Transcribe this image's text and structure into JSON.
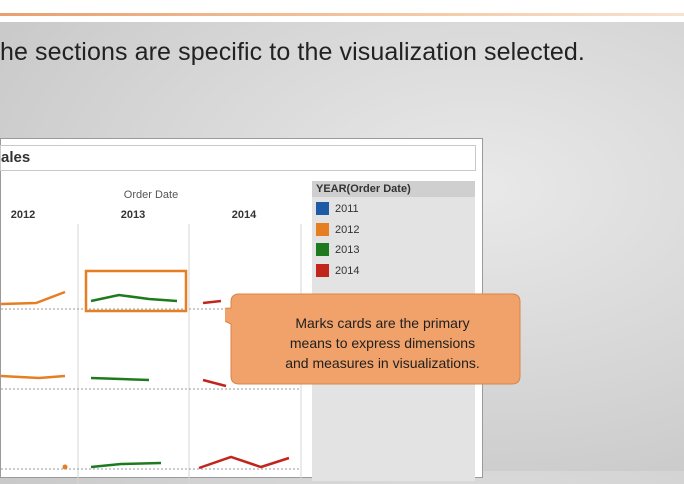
{
  "slide": {
    "headline": "he sections are specific to the visualization selected."
  },
  "viz": {
    "title": "ales",
    "column_group_label": "Order Date",
    "column_headers": [
      "2012",
      "2013",
      "2014"
    ]
  },
  "legend": {
    "title": "YEAR(Order Date)",
    "items": [
      {
        "label": "2011",
        "color": "#1f5aa6"
      },
      {
        "label": "2012",
        "color": "#e67e22"
      },
      {
        "label": "2013",
        "color": "#1e7a1e"
      },
      {
        "label": "2014",
        "color": "#c0261c"
      }
    ]
  },
  "callout": {
    "lines": [
      "Marks cards are the primary",
      "means to express dimensions",
      "and measures in visualizations."
    ],
    "fill": "#f0a26a",
    "border": "#d88547"
  },
  "colors": {
    "highlight_box": "#e67e22",
    "orange": "#e67e22",
    "green": "#1e7a1e",
    "red": "#c0261c"
  }
}
